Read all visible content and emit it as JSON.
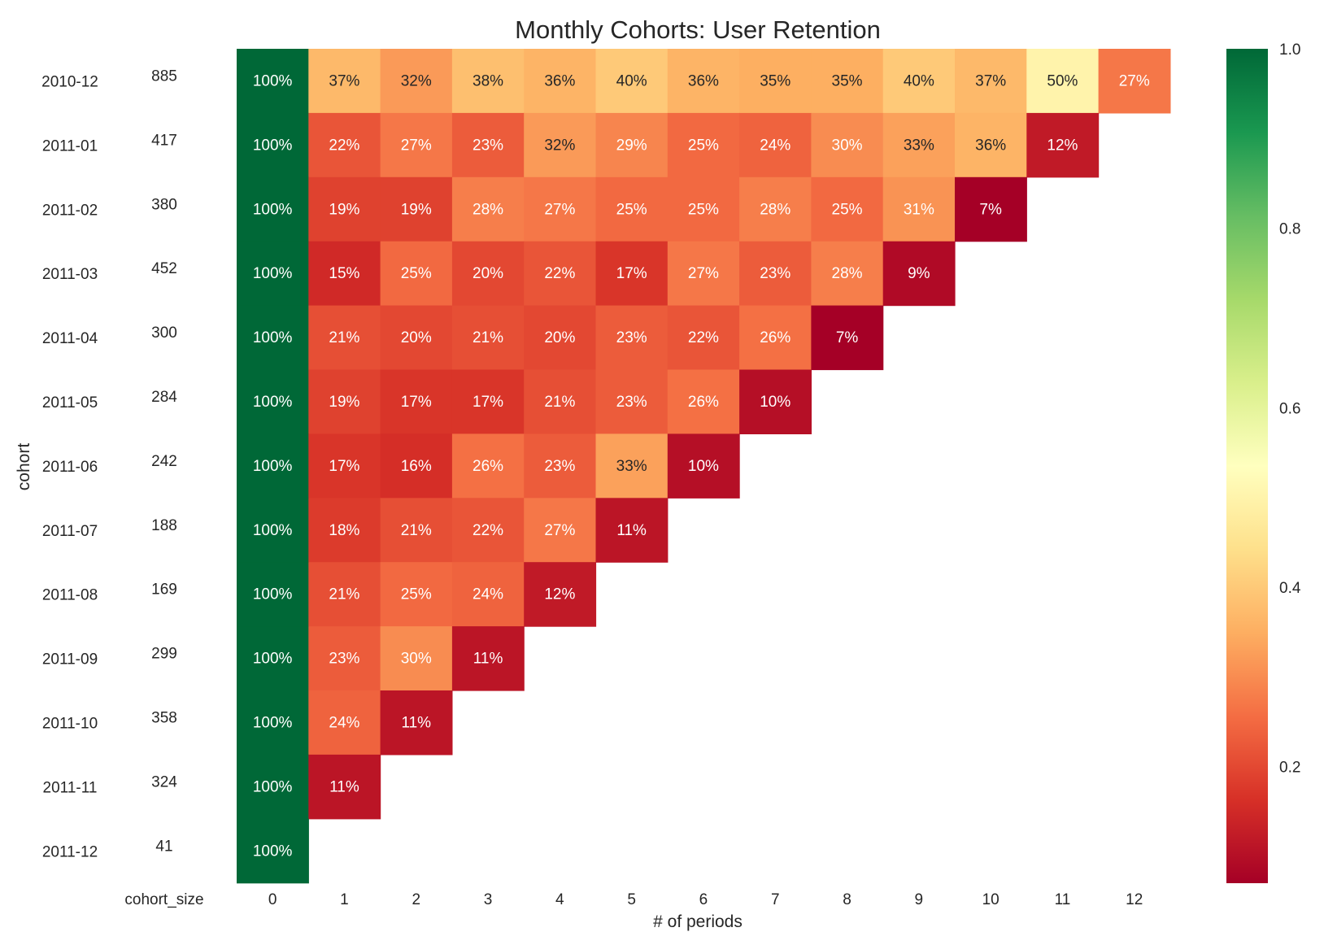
{
  "chart_data": {
    "type": "heatmap",
    "title": "Monthly Cohorts: User Retention",
    "xlabel": "# of periods",
    "ylabel": "cohort",
    "side_column_label": "cohort_size",
    "rows": [
      "2010-12",
      "2011-01",
      "2011-02",
      "2011-03",
      "2011-04",
      "2011-05",
      "2011-06",
      "2011-07",
      "2011-08",
      "2011-09",
      "2011-10",
      "2011-11",
      "2011-12"
    ],
    "cohort_size": [
      885,
      417,
      380,
      452,
      300,
      284,
      242,
      188,
      169,
      299,
      358,
      324,
      41
    ],
    "columns": [
      "0",
      "1",
      "2",
      "3",
      "4",
      "5",
      "6",
      "7",
      "8",
      "9",
      "10",
      "11",
      "12"
    ],
    "values": [
      [
        1.0,
        0.37,
        0.32,
        0.38,
        0.36,
        0.4,
        0.36,
        0.35,
        0.35,
        0.4,
        0.37,
        0.5,
        0.27
      ],
      [
        1.0,
        0.22,
        0.27,
        0.23,
        0.32,
        0.29,
        0.25,
        0.24,
        0.3,
        0.33,
        0.36,
        0.12
      ],
      [
        1.0,
        0.19,
        0.19,
        0.28,
        0.27,
        0.25,
        0.25,
        0.28,
        0.25,
        0.31,
        0.07
      ],
      [
        1.0,
        0.15,
        0.25,
        0.2,
        0.22,
        0.17,
        0.27,
        0.23,
        0.28,
        0.09
      ],
      [
        1.0,
        0.21,
        0.2,
        0.21,
        0.2,
        0.23,
        0.22,
        0.26,
        0.07
      ],
      [
        1.0,
        0.19,
        0.17,
        0.17,
        0.21,
        0.23,
        0.26,
        0.1
      ],
      [
        1.0,
        0.17,
        0.16,
        0.26,
        0.23,
        0.33,
        0.1
      ],
      [
        1.0,
        0.18,
        0.21,
        0.22,
        0.27,
        0.11
      ],
      [
        1.0,
        0.21,
        0.25,
        0.24,
        0.12
      ],
      [
        1.0,
        0.23,
        0.3,
        0.11
      ],
      [
        1.0,
        0.24,
        0.11
      ],
      [
        1.0,
        0.11
      ],
      [
        1.0
      ]
    ],
    "labels": [
      [
        "100%",
        "37%",
        "32%",
        "38%",
        "36%",
        "40%",
        "36%",
        "35%",
        "35%",
        "40%",
        "37%",
        "50%",
        "27%"
      ],
      [
        "100%",
        "22%",
        "27%",
        "23%",
        "32%",
        "29%",
        "25%",
        "24%",
        "30%",
        "33%",
        "36%",
        "12%"
      ],
      [
        "100%",
        "19%",
        "19%",
        "28%",
        "27%",
        "25%",
        "25%",
        "28%",
        "25%",
        "31%",
        "7%"
      ],
      [
        "100%",
        "15%",
        "25%",
        "20%",
        "22%",
        "17%",
        "27%",
        "23%",
        "28%",
        "9%"
      ],
      [
        "100%",
        "21%",
        "20%",
        "21%",
        "20%",
        "23%",
        "22%",
        "26%",
        "7%"
      ],
      [
        "100%",
        "19%",
        "17%",
        "17%",
        "21%",
        "23%",
        "26%",
        "10%"
      ],
      [
        "100%",
        "17%",
        "16%",
        "26%",
        "23%",
        "33%",
        "10%"
      ],
      [
        "100%",
        "18%",
        "21%",
        "22%",
        "27%",
        "11%"
      ],
      [
        "100%",
        "21%",
        "25%",
        "24%",
        "12%"
      ],
      [
        "100%",
        "23%",
        "30%",
        "11%"
      ],
      [
        "100%",
        "24%",
        "11%"
      ],
      [
        "100%",
        "11%"
      ],
      [
        "100%"
      ]
    ],
    "colormap": "RdYlGn",
    "colorbar": {
      "range": [
        0.07,
        1.0
      ],
      "ticks": [
        1.0,
        0.8,
        0.6,
        0.4,
        0.2
      ],
      "tick_labels": [
        "1.0",
        "0.8",
        "0.6",
        "0.4",
        "0.2"
      ]
    },
    "grid": false,
    "legend": "colorbar-right"
  },
  "colors": {
    "stops": [
      "#a50026",
      "#d73027",
      "#f46d43",
      "#fdae61",
      "#fee08b",
      "#ffffbf",
      "#d9ef8b",
      "#a6d96a",
      "#66bd63",
      "#1a9850",
      "#006837"
    ],
    "text_dark": "#262626",
    "text_light": "#ffffff"
  }
}
